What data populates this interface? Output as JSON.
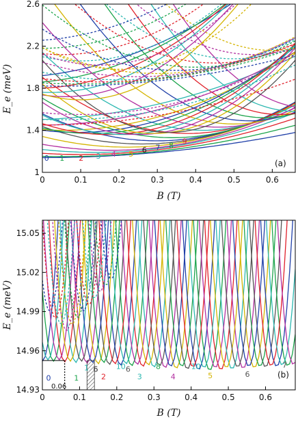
{
  "chart_data": [
    {
      "id": "a",
      "type": "line",
      "panel_label": "(a)",
      "xlabel": "B (T)",
      "ylabel": "E_e (meV)",
      "xlim": [
        0,
        0.66
      ],
      "ylim": [
        1.0,
        2.6
      ],
      "xticks": [
        "0",
        "0.1",
        "0.2",
        "0.3",
        "0.4",
        "0.5",
        "0.6"
      ],
      "yticks": [
        "1",
        "1.4",
        "1.8",
        "2.2",
        "2.6"
      ],
      "grid": false,
      "level_labels": [
        {
          "text": "0",
          "x": 0.005,
          "y": 1.11,
          "color": "#1f3fa8"
        },
        {
          "text": "1",
          "x": 0.045,
          "y": 1.11,
          "color": "#1aa34a"
        },
        {
          "text": "2",
          "x": 0.095,
          "y": 1.11,
          "color": "#e0202a"
        },
        {
          "text": "3",
          "x": 0.14,
          "y": 1.13,
          "color": "#2bb7b0"
        },
        {
          "text": "4",
          "x": 0.18,
          "y": 1.15,
          "color": "#b22fa0"
        },
        {
          "text": "5",
          "x": 0.225,
          "y": 1.15,
          "color": "#d4b400"
        },
        {
          "text": "6",
          "x": 0.26,
          "y": 1.19,
          "color": "#222222"
        },
        {
          "text": "7",
          "x": 0.295,
          "y": 1.21,
          "color": "#1f3fa8"
        },
        {
          "text": "8",
          "x": 0.33,
          "y": 1.23,
          "color": "#1aa34a"
        },
        {
          "text": "9",
          "x": 0.365,
          "y": 1.27,
          "color": "#e0202a"
        }
      ],
      "solid_series": [
        {
          "color": "#1f3fa8",
          "b0": 0.0,
          "e0": 1.14,
          "k": 0.55
        },
        {
          "color": "#1aa34a",
          "b0": 0.05,
          "e0": 1.15,
          "k": 0.8
        },
        {
          "color": "#e0202a",
          "b0": 0.1,
          "e0": 1.17,
          "k": 1.1
        },
        {
          "color": "#2bb7b0",
          "b0": 0.14,
          "e0": 1.19,
          "k": 1.4
        },
        {
          "color": "#b22fa0",
          "b0": 0.18,
          "e0": 1.21,
          "k": 1.75
        },
        {
          "color": "#d4b400",
          "b0": 0.22,
          "e0": 1.24,
          "k": 2.1
        },
        {
          "color": "#555555",
          "b0": 0.26,
          "e0": 1.27,
          "k": 2.45
        },
        {
          "color": "#1f3fa8",
          "b0": 0.3,
          "e0": 1.3,
          "k": 2.85
        },
        {
          "color": "#1aa34a",
          "b0": 0.34,
          "e0": 1.33,
          "k": 3.25
        },
        {
          "color": "#e0202a",
          "b0": 0.38,
          "e0": 1.37,
          "k": 3.7
        },
        {
          "color": "#2bb7b0",
          "b0": 0.42,
          "e0": 1.4,
          "k": 4.2
        },
        {
          "color": "#b22fa0",
          "b0": 0.46,
          "e0": 1.43,
          "k": 4.7
        },
        {
          "color": "#d4b400",
          "b0": 0.5,
          "e0": 1.46,
          "k": 5.2
        },
        {
          "color": "#1f3fa8",
          "b0": 0.54,
          "e0": 1.49,
          "k": 5.7
        },
        {
          "color": "#1aa34a",
          "b0": 0.58,
          "e0": 1.52,
          "k": 6.2
        },
        {
          "color": "#e0202a",
          "b0": 0.62,
          "e0": 1.55,
          "k": 6.7
        },
        {
          "color": "#2bb7b0",
          "b0": 0.66,
          "e0": 1.58,
          "k": 7.2
        },
        {
          "color": "#b22fa0",
          "b0": 0.7,
          "e0": 1.61,
          "k": 7.7
        },
        {
          "color": "#2bb7b0",
          "b0": -0.05,
          "e0": 1.5,
          "k": 1.2
        },
        {
          "color": "#b22fa0",
          "b0": 0.0,
          "e0": 1.45,
          "k": 1.6
        },
        {
          "color": "#d4b400",
          "b0": 0.05,
          "e0": 1.4,
          "k": 2.0
        },
        {
          "color": "#1f3fa8",
          "b0": 0.09,
          "e0": 1.38,
          "k": 2.5
        },
        {
          "color": "#1aa34a",
          "b0": 0.13,
          "e0": 1.37,
          "k": 3.0
        },
        {
          "color": "#e0202a",
          "b0": 0.17,
          "e0": 1.36,
          "k": 3.6
        },
        {
          "color": "#2bb7b0",
          "b0": 0.21,
          "e0": 1.36,
          "k": 4.2
        },
        {
          "color": "#b22fa0",
          "b0": 0.25,
          "e0": 1.36,
          "k": 4.9
        },
        {
          "color": "#d4b400",
          "b0": 0.29,
          "e0": 1.37,
          "k": 5.6
        },
        {
          "color": "#555555",
          "b0": 0.33,
          "e0": 1.38,
          "k": 6.3
        },
        {
          "color": "#1f3fa8",
          "b0": -0.1,
          "e0": 1.9,
          "k": 2.0
        },
        {
          "color": "#1aa34a",
          "b0": -0.06,
          "e0": 1.85,
          "k": 2.6
        },
        {
          "color": "#e0202a",
          "b0": -0.02,
          "e0": 1.8,
          "k": 3.2
        },
        {
          "color": "#2bb7b0",
          "b0": 0.02,
          "e0": 1.76,
          "k": 3.9
        },
        {
          "color": "#b22fa0",
          "b0": 0.06,
          "e0": 1.72,
          "k": 4.6
        },
        {
          "color": "#d4b400",
          "b0": 0.1,
          "e0": 1.69,
          "k": 5.4
        }
      ],
      "dashed_series": [
        {
          "color": "#1f3fa8",
          "b0": 0.05,
          "e0": 1.82,
          "k": 0.8
        },
        {
          "color": "#1aa34a",
          "b0": 0.1,
          "e0": 1.84,
          "k": 1.1
        },
        {
          "color": "#e0202a",
          "b0": 0.15,
          "e0": 1.86,
          "k": 1.4
        },
        {
          "color": "#2bb7b0",
          "b0": 0.2,
          "e0": 1.88,
          "k": 1.8
        },
        {
          "color": "#b22fa0",
          "b0": 0.25,
          "e0": 1.91,
          "k": 2.2
        },
        {
          "color": "#d4b400",
          "b0": 0.3,
          "e0": 1.94,
          "k": 2.7
        },
        {
          "color": "#1f3fa8",
          "b0": 0.35,
          "e0": 1.97,
          "k": 3.2
        },
        {
          "color": "#1aa34a",
          "b0": 0.4,
          "e0": 2.0,
          "k": 3.7
        },
        {
          "color": "#e0202a",
          "b0": 0.45,
          "e0": 2.04,
          "k": 4.2
        },
        {
          "color": "#2bb7b0",
          "b0": 0.5,
          "e0": 2.08,
          "k": 4.7
        },
        {
          "color": "#b22fa0",
          "b0": 0.55,
          "e0": 2.12,
          "k": 5.2
        },
        {
          "color": "#d4b400",
          "b0": 0.6,
          "e0": 2.16,
          "k": 5.7
        },
        {
          "color": "#e0202a",
          "b0": 0.0,
          "e0": 1.45,
          "k": 1.0
        },
        {
          "color": "#2bb7b0",
          "b0": 0.05,
          "e0": 1.5,
          "k": 1.4
        },
        {
          "color": "#b22fa0",
          "b0": 0.1,
          "e0": 1.55,
          "k": 1.8
        },
        {
          "color": "#1f3fa8",
          "b0": -0.05,
          "e0": 2.25,
          "k": 2.5
        },
        {
          "color": "#1aa34a",
          "b0": 0.0,
          "e0": 2.18,
          "k": 3.0
        },
        {
          "color": "#e0202a",
          "b0": 0.05,
          "e0": 2.12,
          "k": 3.5
        },
        {
          "color": "#2bb7b0",
          "b0": 0.1,
          "e0": 2.06,
          "k": 4.0
        },
        {
          "color": "#b22fa0",
          "b0": 0.15,
          "e0": 2.02,
          "k": 4.6
        },
        {
          "color": "#d4b400",
          "b0": 0.2,
          "e0": 1.98,
          "k": 5.2
        }
      ]
    },
    {
      "id": "b",
      "type": "line",
      "panel_label": "(b)",
      "xlabel": "B (T)",
      "ylabel": "E_e (meV)",
      "xlim": [
        0,
        0.68
      ],
      "ylim": [
        14.93,
        15.06
      ],
      "xticks": [
        "0",
        "0.1",
        "0.2",
        "0.3",
        "0.4",
        "0.5",
        "0.6"
      ],
      "yticks": [
        "14.93",
        "14.96",
        "14.99",
        "15.02",
        "15.05"
      ],
      "grid": false,
      "annotation_label": "0.06",
      "annotation_x": 0.06,
      "annotation_level": 14.9525,
      "shaded_range": [
        0.12,
        0.14
      ],
      "level_labels": [
        {
          "text": "0",
          "x": 0.01,
          "y": 14.937,
          "color": "#1f3fa8"
        },
        {
          "text": "1",
          "x": 0.085,
          "y": 14.937,
          "color": "#1aa34a"
        },
        {
          "text": "1",
          "x": 0.112,
          "y": 14.945,
          "color": "#2bb7b0"
        },
        {
          "text": "6",
          "x": 0.137,
          "y": 14.944,
          "color": "#222222"
        },
        {
          "text": "2",
          "x": 0.158,
          "y": 14.938,
          "color": "#e0202a"
        },
        {
          "text": "10",
          "x": 0.198,
          "y": 14.946,
          "color": "#2bb7b0"
        },
        {
          "text": "6",
          "x": 0.224,
          "y": 14.944,
          "color": "#555555"
        },
        {
          "text": "3",
          "x": 0.255,
          "y": 14.938,
          "color": "#2bb7b0"
        },
        {
          "text": "8",
          "x": 0.305,
          "y": 14.946,
          "color": "#1aa34a"
        },
        {
          "text": "4",
          "x": 0.345,
          "y": 14.938,
          "color": "#b22fa0"
        },
        {
          "text": "10",
          "x": 0.4,
          "y": 14.946,
          "color": "#2bb7b0"
        },
        {
          "text": "5",
          "x": 0.445,
          "y": 14.939,
          "color": "#d4b400"
        },
        {
          "text": "6",
          "x": 0.545,
          "y": 14.94,
          "color": "#555555"
        },
        {
          "text": "7",
          "x": 0.645,
          "y": 14.947,
          "color": "#555555"
        }
      ],
      "solid_series": [
        {
          "color": "#1f3fa8",
          "b0": 0.0,
          "e0": 14.952,
          "k": 60
        },
        {
          "color": "#1aa34a",
          "b0": 0.03,
          "e0": 14.952,
          "k": 60
        },
        {
          "color": "#e0202a",
          "b0": 0.06,
          "e0": 14.9515,
          "k": 60
        },
        {
          "color": "#2bb7b0",
          "b0": 0.09,
          "e0": 14.951,
          "k": 60
        },
        {
          "color": "#b22fa0",
          "b0": 0.12,
          "e0": 14.9505,
          "k": 60
        },
        {
          "color": "#d4b400",
          "b0": 0.15,
          "e0": 14.95,
          "k": 60
        },
        {
          "color": "#555555",
          "b0": 0.18,
          "e0": 14.9495,
          "k": 60
        },
        {
          "color": "#1f3fa8",
          "b0": 0.21,
          "e0": 14.949,
          "k": 60
        },
        {
          "color": "#1aa34a",
          "b0": 0.24,
          "e0": 14.9485,
          "k": 60
        },
        {
          "color": "#e0202a",
          "b0": 0.27,
          "e0": 14.948,
          "k": 60
        },
        {
          "color": "#2bb7b0",
          "b0": 0.3,
          "e0": 14.9475,
          "k": 60
        },
        {
          "color": "#b22fa0",
          "b0": 0.33,
          "e0": 14.947,
          "k": 60
        },
        {
          "color": "#d4b400",
          "b0": 0.36,
          "e0": 14.9465,
          "k": 60
        },
        {
          "color": "#555555",
          "b0": 0.39,
          "e0": 14.946,
          "k": 60
        },
        {
          "color": "#1f3fa8",
          "b0": 0.42,
          "e0": 14.9455,
          "k": 60
        },
        {
          "color": "#1aa34a",
          "b0": 0.45,
          "e0": 14.945,
          "k": 60
        },
        {
          "color": "#e0202a",
          "b0": 0.48,
          "e0": 14.9455,
          "k": 60
        },
        {
          "color": "#2bb7b0",
          "b0": 0.51,
          "e0": 14.946,
          "k": 60
        },
        {
          "color": "#b22fa0",
          "b0": 0.54,
          "e0": 14.9465,
          "k": 60
        },
        {
          "color": "#d4b400",
          "b0": 0.57,
          "e0": 14.947,
          "k": 60
        },
        {
          "color": "#555555",
          "b0": 0.6,
          "e0": 14.9475,
          "k": 60
        },
        {
          "color": "#1f3fa8",
          "b0": 0.63,
          "e0": 14.948,
          "k": 60
        },
        {
          "color": "#1aa34a",
          "b0": 0.66,
          "e0": 14.9485,
          "k": 60
        },
        {
          "color": "#2bb7b0",
          "b0": 0.015,
          "e0": 14.953,
          "k": 60
        },
        {
          "color": "#b22fa0",
          "b0": 0.045,
          "e0": 14.953,
          "k": 60
        },
        {
          "color": "#d4b400",
          "b0": 0.075,
          "e0": 14.952,
          "k": 60
        },
        {
          "color": "#555555",
          "b0": 0.105,
          "e0": 14.952,
          "k": 60
        },
        {
          "color": "#1f3fa8",
          "b0": 0.135,
          "e0": 14.951,
          "k": 60
        },
        {
          "color": "#1aa34a",
          "b0": 0.165,
          "e0": 14.951,
          "k": 60
        },
        {
          "color": "#e0202a",
          "b0": 0.195,
          "e0": 14.95,
          "k": 60
        },
        {
          "color": "#2bb7b0",
          "b0": 0.225,
          "e0": 14.95,
          "k": 60
        },
        {
          "color": "#b22fa0",
          "b0": 0.255,
          "e0": 14.9495,
          "k": 60
        },
        {
          "color": "#d4b400",
          "b0": 0.285,
          "e0": 14.949,
          "k": 60
        },
        {
          "color": "#555555",
          "b0": 0.315,
          "e0": 14.9485,
          "k": 60
        },
        {
          "color": "#1f3fa8",
          "b0": 0.345,
          "e0": 14.948,
          "k": 60
        },
        {
          "color": "#1aa34a",
          "b0": 0.375,
          "e0": 14.948,
          "k": 60
        },
        {
          "color": "#e0202a",
          "b0": 0.405,
          "e0": 14.9475,
          "k": 60
        },
        {
          "color": "#2bb7b0",
          "b0": 0.435,
          "e0": 14.947,
          "k": 60
        },
        {
          "color": "#b22fa0",
          "b0": 0.465,
          "e0": 14.947,
          "k": 60
        },
        {
          "color": "#d4b400",
          "b0": 0.495,
          "e0": 14.947,
          "k": 60
        },
        {
          "color": "#555555",
          "b0": 0.525,
          "e0": 14.9475,
          "k": 60
        },
        {
          "color": "#1f3fa8",
          "b0": 0.555,
          "e0": 14.948,
          "k": 60
        },
        {
          "color": "#1aa34a",
          "b0": 0.585,
          "e0": 14.948,
          "k": 60
        },
        {
          "color": "#e0202a",
          "b0": 0.615,
          "e0": 14.9485,
          "k": 60
        },
        {
          "color": "#2bb7b0",
          "b0": 0.645,
          "e0": 14.949,
          "k": 60
        },
        {
          "color": "#b22fa0",
          "b0": 0.675,
          "e0": 14.9495,
          "k": 60
        }
      ],
      "dashed_series": [
        {
          "color": "#1f3fa8",
          "b0": 0.02,
          "e0": 14.99,
          "k": 60
        },
        {
          "color": "#e0202a",
          "b0": 0.035,
          "e0": 14.985,
          "k": 60
        },
        {
          "color": "#2bb7b0",
          "b0": 0.05,
          "e0": 14.98,
          "k": 60
        },
        {
          "color": "#b22fa0",
          "b0": 0.065,
          "e0": 14.975,
          "k": 60
        },
        {
          "color": "#d4b400",
          "b0": 0.08,
          "e0": 14.98,
          "k": 60
        },
        {
          "color": "#1aa34a",
          "b0": 0.095,
          "e0": 14.985,
          "k": 60
        },
        {
          "color": "#1f3fa8",
          "b0": 0.11,
          "e0": 14.99,
          "k": 60
        },
        {
          "color": "#e0202a",
          "b0": 0.125,
          "e0": 14.995,
          "k": 60
        },
        {
          "color": "#2bb7b0",
          "b0": 0.14,
          "e0": 15.0,
          "k": 60
        },
        {
          "color": "#b22fa0",
          "b0": 0.155,
          "e0": 15.005,
          "k": 60
        },
        {
          "color": "#1aa34a",
          "b0": 0.17,
          "e0": 15.01,
          "k": 60
        },
        {
          "color": "#1f3fa8",
          "b0": 0.185,
          "e0": 15.015,
          "k": 60
        }
      ]
    }
  ]
}
